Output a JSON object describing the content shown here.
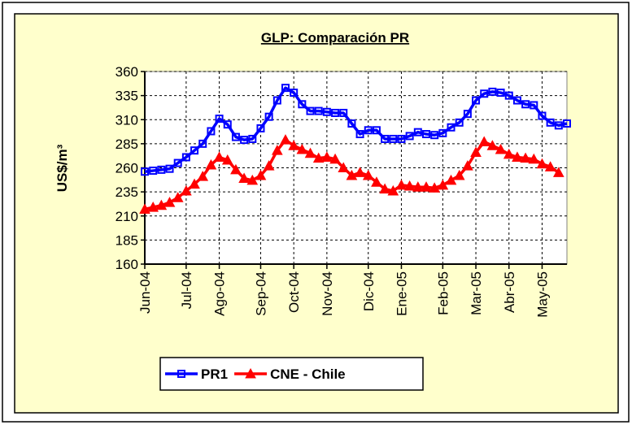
{
  "chart_data": {
    "type": "line",
    "title": "GLP: Comparación PR",
    "y_label": "US$/m³",
    "categories": [
      "Jun-04",
      null,
      null,
      null,
      null,
      "Jul-04",
      null,
      null,
      null,
      "Ago-04",
      null,
      null,
      null,
      null,
      "Sep-04",
      null,
      null,
      null,
      "Oct-04",
      null,
      null,
      null,
      "Nov-04",
      null,
      null,
      null,
      null,
      "Dic-04",
      null,
      null,
      null,
      "Ene-05",
      null,
      null,
      null,
      null,
      "Feb-05",
      null,
      null,
      null,
      "Mar-05",
      null,
      null,
      null,
      "Abr-05",
      null,
      null,
      null,
      "May-05",
      null,
      null,
      null
    ],
    "series": [
      {
        "name": "PR1",
        "color": "#0000ff",
        "marker": "square",
        "values": [
          256,
          257,
          258,
          259,
          265,
          271,
          278,
          285,
          298,
          311,
          305,
          292,
          289,
          290,
          301,
          313,
          330,
          343,
          338,
          326,
          319,
          319,
          318,
          317,
          317,
          306,
          295,
          299,
          299,
          290,
          290,
          290,
          293,
          297,
          295,
          294,
          296,
          302,
          307,
          316,
          330,
          337,
          339,
          338,
          335,
          330,
          326,
          325,
          314,
          307,
          304,
          306
        ]
      },
      {
        "name": "CNE - Chile",
        "color": "#ff0000",
        "marker": "triangle",
        "values": [
          217,
          219,
          221,
          224,
          229,
          236,
          243,
          251,
          263,
          271,
          268,
          258,
          249,
          247,
          252,
          262,
          278,
          289,
          283,
          279,
          275,
          270,
          271,
          269,
          260,
          252,
          255,
          252,
          245,
          238,
          236,
          242,
          241,
          240,
          240,
          239,
          242,
          247,
          252,
          262,
          276,
          287,
          283,
          279,
          274,
          271,
          270,
          269,
          264,
          261,
          255,
          null
        ]
      }
    ],
    "ylim": [
      160,
      360
    ],
    "yticks": [
      160,
      185,
      210,
      235,
      260,
      285,
      310,
      335,
      360
    ],
    "grid": true,
    "legend": "bottom"
  }
}
